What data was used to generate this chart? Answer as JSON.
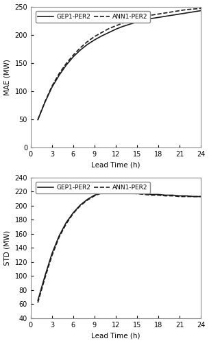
{
  "top_plot": {
    "ylabel": "MAE (MW)",
    "xlabel": "Lead Time (h)",
    "xlim": [
      0,
      24
    ],
    "ylim": [
      0,
      250
    ],
    "xticks": [
      0,
      3,
      6,
      9,
      12,
      15,
      18,
      21,
      24
    ],
    "yticks": [
      0,
      50,
      100,
      150,
      200,
      250
    ],
    "gep_x": [
      1,
      2,
      3,
      4,
      5,
      6,
      7,
      8,
      9,
      10,
      11,
      12,
      13,
      14,
      15,
      16,
      17,
      18,
      19,
      20,
      21,
      22,
      23,
      24
    ],
    "gep_y": [
      49,
      80,
      107,
      128,
      146,
      161,
      173,
      183,
      191,
      198,
      204,
      210,
      215,
      219,
      223,
      226,
      229,
      231,
      233,
      235,
      237,
      239,
      241,
      243
    ],
    "ann_y": [
      49,
      81,
      109,
      131,
      149,
      164,
      177,
      188,
      197,
      204,
      211,
      216,
      221,
      225,
      229,
      232,
      235,
      237,
      239,
      241,
      243,
      245,
      246,
      247
    ],
    "legend": [
      "GEP1-PER2",
      "ANN1-PER2"
    ],
    "gep_lw": 1.2,
    "ann_lw": 1.2
  },
  "bottom_plot": {
    "ylabel": "STD (MW)",
    "xlabel": "Lead Time (h)",
    "xlim": [
      0,
      24
    ],
    "ylim": [
      40,
      240
    ],
    "xticks": [
      0,
      3,
      6,
      9,
      12,
      15,
      18,
      21,
      24
    ],
    "yticks": [
      40,
      60,
      80,
      100,
      120,
      140,
      160,
      180,
      200,
      220,
      240
    ],
    "gep_x": [
      1,
      2,
      3,
      4,
      5,
      6,
      7,
      8,
      9,
      10,
      11,
      12,
      13,
      14,
      15,
      16,
      17,
      18,
      19,
      20,
      21,
      22,
      23,
      24
    ],
    "gep_y": [
      65,
      100,
      132,
      157,
      176,
      190,
      201,
      209,
      215,
      218,
      220,
      221,
      220,
      219,
      218,
      217,
      216,
      216,
      215,
      215,
      214,
      214,
      213,
      213
    ],
    "ann_y": [
      62,
      97,
      129,
      155,
      174,
      189,
      200,
      208,
      214,
      218,
      220,
      220,
      219,
      218,
      217,
      216,
      215,
      215,
      214,
      214,
      213,
      213,
      213,
      213
    ],
    "legend": [
      "GEP1-PER2",
      "ANN1-PER2"
    ],
    "gep_lw": 1.2,
    "ann_lw": 1.2
  },
  "fig_width": 3.05,
  "fig_height": 5.0,
  "dpi": 100,
  "tick_fontsize": 7,
  "label_fontsize": 7.5,
  "legend_fontsize": 6.5,
  "line_color": "#1a1a1a",
  "background_color": "#ffffff"
}
